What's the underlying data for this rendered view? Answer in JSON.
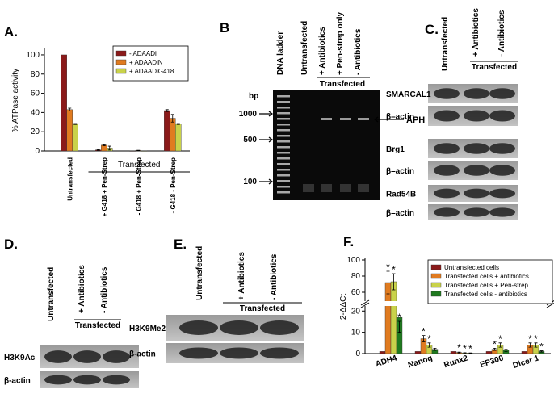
{
  "chart_data": [
    {
      "type": "bar",
      "panel": "A.",
      "ylabel": "% ATPase activity",
      "categories": [
        "Untransfected",
        "+ G418 + Pen-Strep",
        "- G418 + Pen-Strep",
        "- G418 - Pen-Strep"
      ],
      "group_label": "Transfected",
      "series": [
        {
          "name": "- ADAADi",
          "color": "#8b1a1a",
          "values": [
            100,
            1,
            0,
            42
          ],
          "errors": [
            0,
            0.5,
            0,
            1
          ]
        },
        {
          "name": "+ ADAADiN",
          "color": "#e07b20",
          "values": [
            43,
            6,
            0.5,
            34
          ],
          "errors": [
            1.5,
            0.5,
            0.2,
            4
          ]
        },
        {
          "name": "+ ADAADiG418",
          "color": "#c9d24a",
          "values": [
            28,
            3,
            0,
            28
          ],
          "errors": [
            0.5,
            2,
            0,
            0.5
          ]
        }
      ],
      "ylim": [
        0,
        105
      ],
      "yticks": [
        0,
        20,
        40,
        60,
        80,
        100
      ],
      "legend": "upper right"
    },
    {
      "type": "bar",
      "panel": "F.",
      "ylabel": "2-ΔΔCt",
      "categories": [
        "ADH4",
        "Nanog",
        "Runx2",
        "EP300",
        "Dicer 1"
      ],
      "series": [
        {
          "name": "Untransfected cells",
          "color": "#8b1a1a",
          "values": [
            1,
            1,
            1,
            1,
            1
          ],
          "errors": [
            0,
            0,
            0,
            0,
            0
          ],
          "annotations": [
            null,
            null,
            null,
            null,
            null
          ]
        },
        {
          "name": "Transfected cells + antibiotics",
          "color": "#e07b20",
          "values": [
            72,
            7,
            0.5,
            2,
            4
          ],
          "errors": [
            14,
            1.5,
            0.2,
            0.5,
            1
          ],
          "annotations": [
            "*",
            "*",
            "*",
            "*",
            "*"
          ]
        },
        {
          "name": "Transfected cells + Pen-strep",
          "color": "#c9d24a",
          "values": [
            73,
            4,
            0.3,
            4,
            4
          ],
          "errors": [
            10,
            1,
            0.1,
            1,
            1
          ],
          "annotations": [
            "*",
            "*",
            "*",
            "*",
            "*"
          ]
        },
        {
          "name": "Transfected cells - antibiotics",
          "color": "#1f7a1f",
          "values": [
            17,
            2,
            0.2,
            1.5,
            1
          ],
          "errors": [
            7,
            0.5,
            0.1,
            0.5,
            0.3
          ],
          "annotations": [
            "*",
            null,
            "*",
            null,
            "*"
          ]
        }
      ],
      "ylim": [
        0,
        100
      ],
      "axis_break": [
        22,
        50
      ],
      "yticks": [
        0,
        10,
        20,
        60,
        80,
        100
      ],
      "legend": "upper right"
    }
  ],
  "gel": {
    "panel": "B",
    "lanes": [
      "DNA ladder",
      "Untransfected",
      "+ Antibiotics",
      "+ Pen-strep only",
      "- Antibiotics"
    ],
    "group_label": "Transfected",
    "unit": "bp",
    "markers": [
      "1000",
      "500",
      "100"
    ],
    "band": "APH"
  },
  "blot_c": {
    "panel": "C.",
    "lanes": [
      "Untransfected",
      "+ Antibiotics",
      "- Antibiotics"
    ],
    "group_label": "Transfected",
    "rows": [
      "SMARCAL1",
      "β–actin",
      "Brg1",
      "β–actin",
      "Rad54B",
      "β–actin"
    ]
  },
  "blot_d": {
    "panel": "D.",
    "lanes": [
      "Untransfected",
      "+ Antibiotics",
      "- Antibiotics"
    ],
    "group_label": "Transfected",
    "rows": [
      "H3K9Ac",
      "β-actin"
    ]
  },
  "blot_e": {
    "panel": "E.",
    "lanes": [
      "Untransfected",
      "+ Antibiotics",
      "- Antibiotics"
    ],
    "group_label": "Transfected",
    "rows": [
      "H3K9Me2",
      "β-actin"
    ]
  }
}
